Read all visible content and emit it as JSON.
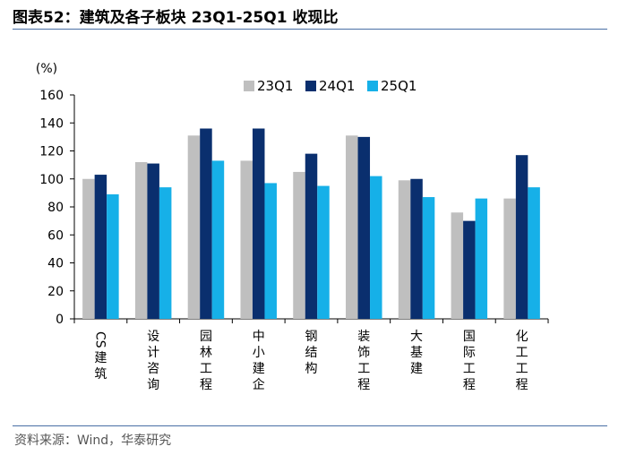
{
  "figure_label": "图表52：",
  "figure_title": "建筑及各子板块 23Q1-25Q1 收现比",
  "source_note": "资料来源：Wind，华泰研究",
  "chart_data": {
    "type": "bar",
    "ylabel": "(%)",
    "ylim": [
      0,
      160
    ],
    "yticks": [
      0,
      20,
      40,
      60,
      80,
      100,
      120,
      140,
      160
    ],
    "grid": false,
    "legend_position": "top-right",
    "categories": [
      "CS建筑",
      "设计咨询",
      "园林工程",
      "中小建企",
      "钢结构",
      "装饰工程",
      "大基建",
      "国际工程",
      "化工工程"
    ],
    "series": [
      {
        "name": "23Q1",
        "color": "#bfbfbf",
        "values": [
          100,
          112,
          131,
          113,
          105,
          131,
          99,
          76,
          86
        ]
      },
      {
        "name": "24Q1",
        "color": "#0a2f6e",
        "values": [
          103,
          111,
          136,
          136,
          118,
          130,
          100,
          70,
          117
        ]
      },
      {
        "name": "25Q1",
        "color": "#16b0e8",
        "values": [
          89,
          94,
          113,
          97,
          95,
          102,
          87,
          86,
          94
        ]
      }
    ]
  }
}
